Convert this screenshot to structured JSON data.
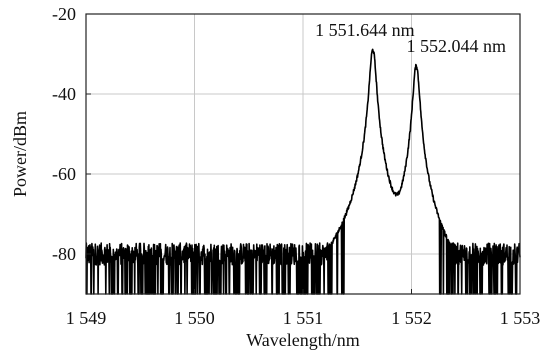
{
  "chart_data": {
    "type": "line",
    "xlabel": "Wavelength/nm",
    "ylabel": "Power/dBm",
    "xlim": [
      1549,
      1553
    ],
    "ylim": [
      -90,
      -20
    ],
    "x_ticks": [
      1549,
      1550,
      1551,
      1552,
      1553
    ],
    "x_tick_labels": [
      "1 549",
      "1 550",
      "1 551",
      "1 552",
      "1 553"
    ],
    "y_ticks": [
      -80,
      -60,
      -40,
      -20
    ],
    "y_tick_labels": [
      "-80",
      "-60",
      "-40",
      "-20"
    ],
    "grid": true,
    "legend": "none",
    "colors": {
      "line": "#000000",
      "grid": "#c8c8c8"
    },
    "noise_floor_dbm": -80,
    "series": [
      {
        "peaks": [
          {
            "x": 1551.644,
            "y": -29
          },
          {
            "x": 1552.044,
            "y": -33
          }
        ]
      }
    ],
    "annotations": [
      {
        "text": "1 551.644 nm",
        "x": 1551.644,
        "y": -29
      },
      {
        "text": "1 552.044 nm",
        "x": 1552.044,
        "y": -33
      }
    ]
  }
}
